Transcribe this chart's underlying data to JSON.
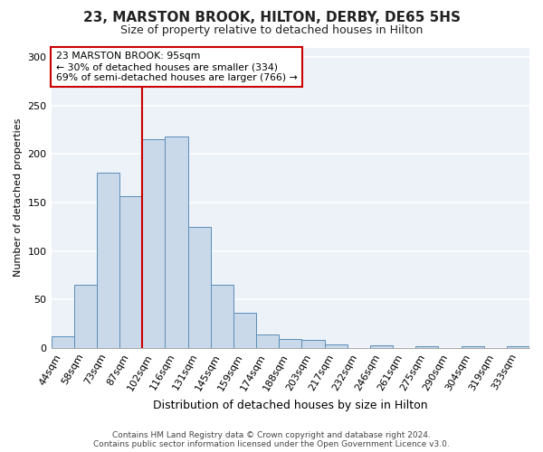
{
  "title": "23, MARSTON BROOK, HILTON, DERBY, DE65 5HS",
  "subtitle": "Size of property relative to detached houses in Hilton",
  "xlabel": "Distribution of detached houses by size in Hilton",
  "ylabel": "Number of detached properties",
  "bar_labels": [
    "44sqm",
    "58sqm",
    "73sqm",
    "87sqm",
    "102sqm",
    "116sqm",
    "131sqm",
    "145sqm",
    "159sqm",
    "174sqm",
    "188sqm",
    "203sqm",
    "217sqm",
    "232sqm",
    "246sqm",
    "261sqm",
    "275sqm",
    "290sqm",
    "304sqm",
    "319sqm",
    "333sqm"
  ],
  "bar_values": [
    12,
    65,
    181,
    157,
    215,
    218,
    125,
    65,
    36,
    14,
    9,
    8,
    4,
    0,
    3,
    0,
    2,
    0,
    2,
    0,
    2
  ],
  "bar_color": "#c9d9ea",
  "bar_edge_color": "#5b8db8",
  "vline_color": "#cc0000",
  "annotation_title": "23 MARSTON BROOK: 95sqm",
  "annotation_line1": "← 30% of detached houses are smaller (334)",
  "annotation_line2": "69% of semi-detached houses are larger (766) →",
  "annotation_box_edge_color": "#cc0000",
  "ylim": [
    0,
    310
  ],
  "yticks": [
    0,
    50,
    100,
    150,
    200,
    250,
    300
  ],
  "footer1": "Contains HM Land Registry data © Crown copyright and database right 2024.",
  "footer2": "Contains public sector information licensed under the Open Government Licence v3.0.",
  "bg_color": "#ffffff",
  "plot_bg_color": "#edf2f9",
  "grid_color": "#ffffff",
  "title_fontsize": 11,
  "subtitle_fontsize": 9,
  "ylabel_fontsize": 8,
  "xlabel_fontsize": 9,
  "tick_fontsize": 8,
  "footer_fontsize": 6.5
}
